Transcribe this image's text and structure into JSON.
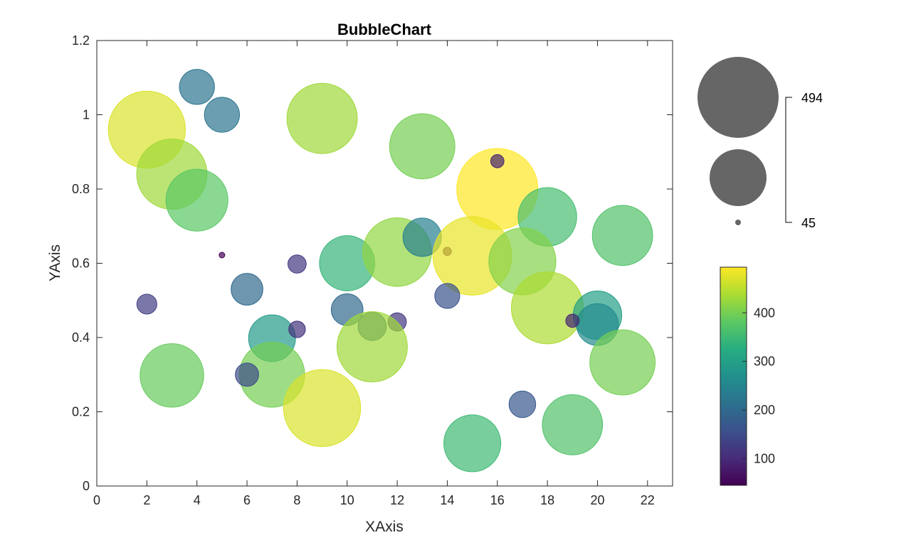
{
  "chart_data": {
    "type": "scatter",
    "title": "BubbleChart",
    "xlabel": "XAxis",
    "ylabel": "YAxis",
    "xlim": [
      0,
      23
    ],
    "ylim": [
      0,
      1.2
    ],
    "xticks": [
      "0",
      "2",
      "4",
      "6",
      "8",
      "10",
      "12",
      "14",
      "16",
      "18",
      "20",
      "22"
    ],
    "yticks": [
      "0",
      "0.2",
      "0.4",
      "0.6",
      "0.8",
      "1",
      "1.2"
    ],
    "grid": false,
    "colormap": "viridis",
    "colorbar": {
      "range": [
        45,
        494
      ],
      "ticks": [
        "100",
        "200",
        "300",
        "400"
      ]
    },
    "size_legend": {
      "max_label": "494",
      "min_label": "45"
    },
    "points": [
      {
        "x": 2,
        "y": 0.96,
        "size": 470
      },
      {
        "x": 3,
        "y": 0.84,
        "size": 430
      },
      {
        "x": 4,
        "y": 0.77,
        "size": 380
      },
      {
        "x": 4,
        "y": 1.075,
        "size": 220
      },
      {
        "x": 5,
        "y": 1.0,
        "size": 220
      },
      {
        "x": 9,
        "y": 0.99,
        "size": 430
      },
      {
        "x": 13,
        "y": 0.915,
        "size": 400
      },
      {
        "x": 16,
        "y": 0.8,
        "size": 494
      },
      {
        "x": 16,
        "y": 0.875,
        "size": 90
      },
      {
        "x": 18,
        "y": 0.725,
        "size": 360
      },
      {
        "x": 21,
        "y": 0.675,
        "size": 370
      },
      {
        "x": 5,
        "y": 0.622,
        "size": 45
      },
      {
        "x": 2,
        "y": 0.49,
        "size": 130
      },
      {
        "x": 6,
        "y": 0.53,
        "size": 200
      },
      {
        "x": 8,
        "y": 0.598,
        "size": 120
      },
      {
        "x": 10,
        "y": 0.6,
        "size": 340
      },
      {
        "x": 12,
        "y": 0.63,
        "size": 420
      },
      {
        "x": 13,
        "y": 0.67,
        "size": 240
      },
      {
        "x": 14,
        "y": 0.632,
        "size": 60
      },
      {
        "x": 15,
        "y": 0.62,
        "size": 480
      },
      {
        "x": 17,
        "y": 0.605,
        "size": 410
      },
      {
        "x": 14,
        "y": 0.512,
        "size": 160
      },
      {
        "x": 10,
        "y": 0.475,
        "size": 200
      },
      {
        "x": 11,
        "y": 0.43,
        "size": 180
      },
      {
        "x": 12,
        "y": 0.442,
        "size": 120
      },
      {
        "x": 11,
        "y": 0.375,
        "size": 430
      },
      {
        "x": 18,
        "y": 0.48,
        "size": 440
      },
      {
        "x": 20,
        "y": 0.46,
        "size": 300
      },
      {
        "x": 20,
        "y": 0.435,
        "size": 260
      },
      {
        "x": 19,
        "y": 0.445,
        "size": 90
      },
      {
        "x": 7,
        "y": 0.398,
        "size": 290
      },
      {
        "x": 8,
        "y": 0.422,
        "size": 110
      },
      {
        "x": 7,
        "y": 0.3,
        "size": 400
      },
      {
        "x": 6,
        "y": 0.3,
        "size": 150
      },
      {
        "x": 3,
        "y": 0.298,
        "size": 390
      },
      {
        "x": 9,
        "y": 0.21,
        "size": 470
      },
      {
        "x": 21,
        "y": 0.333,
        "size": 400
      },
      {
        "x": 17,
        "y": 0.22,
        "size": 170
      },
      {
        "x": 19,
        "y": 0.165,
        "size": 370
      },
      {
        "x": 15,
        "y": 0.115,
        "size": 350
      }
    ]
  }
}
